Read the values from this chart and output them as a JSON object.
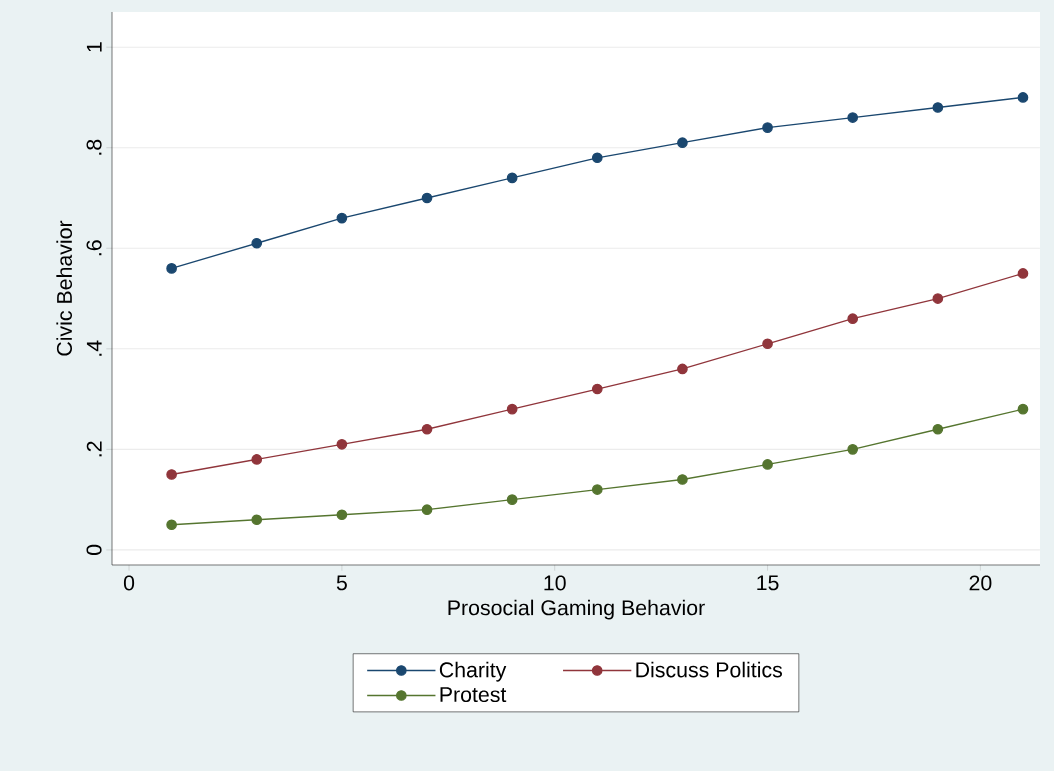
{
  "chart_data": {
    "type": "line",
    "xlabel": "Prosocial Gaming Behavior",
    "ylabel": "Civic Behavior",
    "x": [
      1,
      3,
      5,
      7,
      9,
      11,
      13,
      15,
      17,
      19,
      21
    ],
    "series": [
      {
        "name": "Charity",
        "color": "#1a476f",
        "values": [
          0.56,
          0.61,
          0.66,
          0.7,
          0.74,
          0.78,
          0.81,
          0.84,
          0.86,
          0.88,
          0.9
        ]
      },
      {
        "name": "Discuss Politics",
        "color": "#90353b",
        "values": [
          0.15,
          0.18,
          0.21,
          0.24,
          0.28,
          0.32,
          0.36,
          0.41,
          0.46,
          0.5,
          0.55
        ]
      },
      {
        "name": "Protest",
        "color": "#55752f",
        "values": [
          0.05,
          0.06,
          0.07,
          0.08,
          0.1,
          0.12,
          0.14,
          0.17,
          0.2,
          0.24,
          0.28
        ]
      }
    ],
    "xlim": [
      -0.4,
      21.4
    ],
    "ylim": [
      -0.03,
      1.07
    ],
    "xticks": [
      0,
      5,
      10,
      15,
      20
    ],
    "yticks": [
      0,
      {
        "value": 0.2,
        "label": ".2"
      },
      {
        "value": 0.4,
        "label": ".4"
      },
      {
        "value": 0.6,
        "label": ".6"
      },
      {
        "value": 0.8,
        "label": ".8"
      },
      1
    ],
    "grid": "y",
    "legend": "bottom",
    "marker": "circle",
    "line_style": "solid"
  }
}
